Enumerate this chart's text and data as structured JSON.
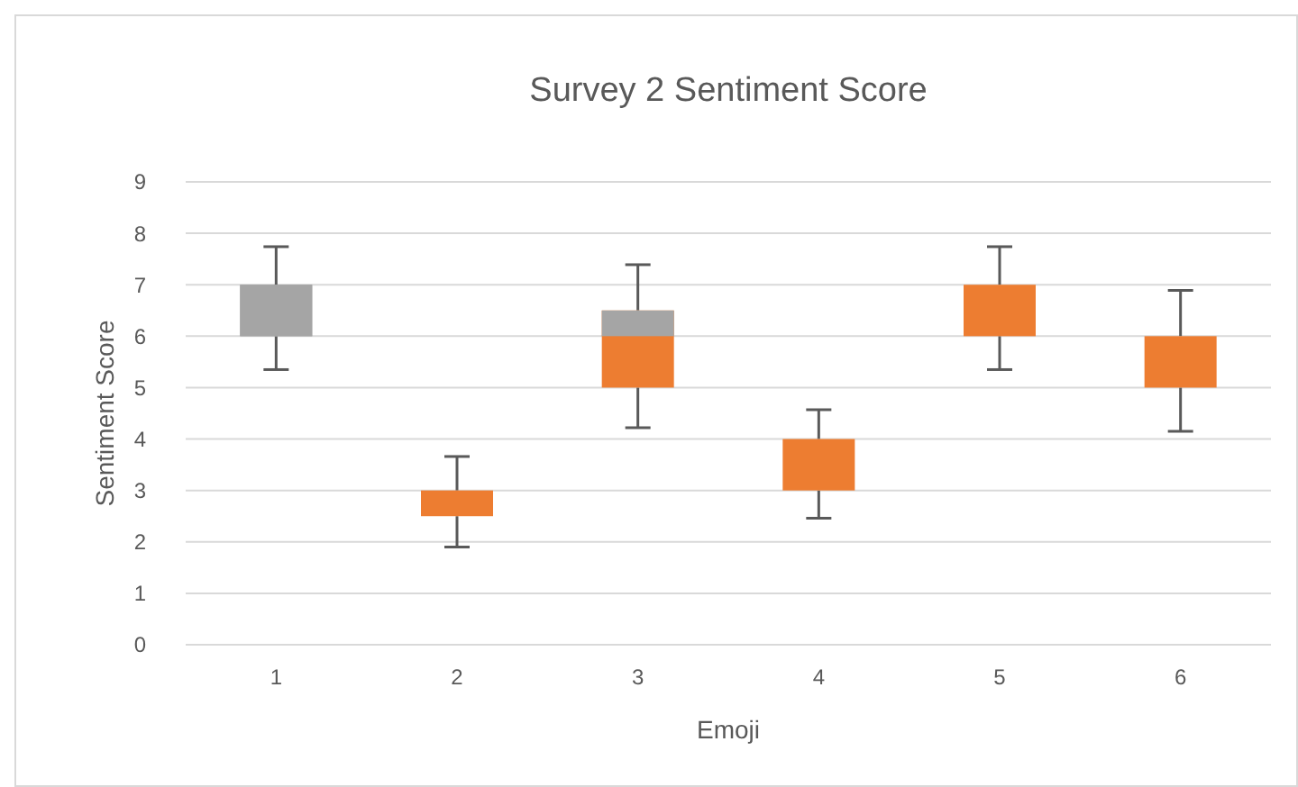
{
  "chart_data": {
    "type": "box",
    "title": "Survey 2 Sentiment Score",
    "xlabel": "Emoji",
    "ylabel": "Sentiment Score",
    "categories": [
      "1",
      "2",
      "3",
      "4",
      "5",
      "6"
    ],
    "color": "#a5a5a5",
    "colors": [
      "#a5a5a5",
      "#ed7d31",
      "#ed7d31",
      "#ed7d31",
      "#ed7d31",
      "#ed7d31"
    ],
    "boxes": [
      {
        "low": 5.35,
        "q1": 6,
        "median": 6,
        "q3": 7,
        "high": 7.74
      },
      {
        "low": 1.9,
        "q1": 2.5,
        "median": 3,
        "q3": 3,
        "high": 3.66
      },
      {
        "low": 4.22,
        "q1": 5,
        "median": 6,
        "q3": 6.5,
        "high": 7.39
      },
      {
        "low": 2.46,
        "q1": 3,
        "median": 4,
        "q3": 4,
        "high": 4.57
      },
      {
        "low": 5.35,
        "q1": 6,
        "median": 7,
        "q3": 7,
        "high": 7.74
      },
      {
        "low": 4.15,
        "q1": 5,
        "median": 6,
        "q3": 6,
        "high": 6.89
      }
    ],
    "ylim": [
      0,
      9
    ],
    "yticks": [
      0,
      1,
      2,
      3,
      4,
      5,
      6,
      7,
      8,
      9
    ],
    "grid": "y"
  }
}
